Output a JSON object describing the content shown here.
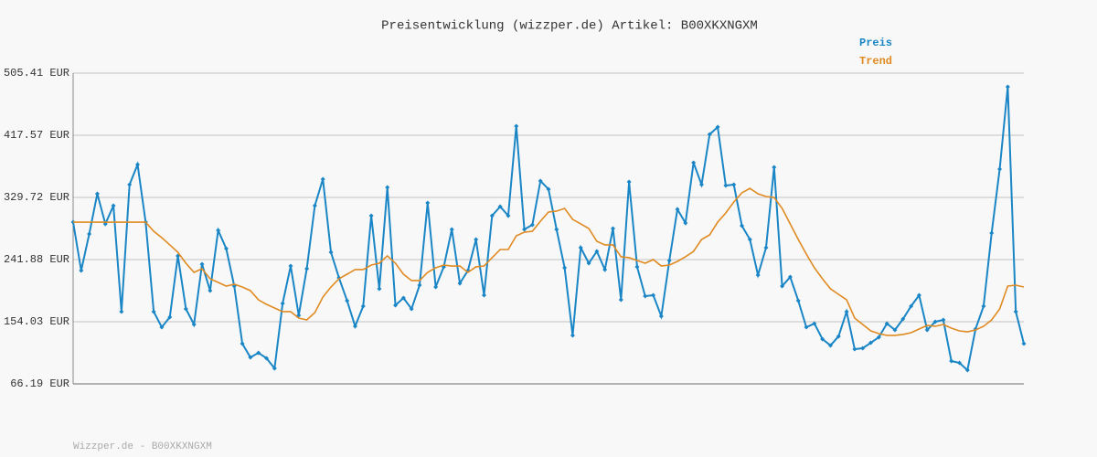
{
  "chart_data": {
    "type": "line",
    "title": "Preisentwicklung (wizzper.de) Artikel: B00XKXNGXM",
    "footer": "Wizzper.de - B00XKXNGXM",
    "legend": "top-right",
    "grid": true,
    "categories": [
      null,
      null,
      null,
      null,
      null,
      null,
      null,
      null,
      null,
      null,
      null,
      null,
      null,
      null,
      null,
      null,
      null,
      null,
      null,
      null,
      null,
      null,
      null,
      null,
      null,
      null,
      null,
      null,
      null,
      null,
      null,
      null,
      null,
      null,
      null,
      null,
      null,
      null,
      null,
      null,
      null,
      null,
      null,
      null,
      null,
      null,
      null,
      null,
      null,
      null,
      null,
      null,
      null,
      null,
      null,
      null,
      null,
      null,
      null,
      null,
      null,
      null,
      null,
      null,
      null,
      null,
      null,
      null,
      null,
      null,
      null,
      null,
      null,
      null,
      null,
      null,
      null,
      null,
      null,
      null,
      null,
      null,
      null,
      null,
      null,
      null,
      null,
      null,
      null,
      null,
      null,
      null,
      null,
      null,
      null,
      null,
      null,
      null,
      null,
      null,
      null,
      null,
      null,
      null,
      null,
      null,
      null,
      null,
      null,
      null,
      null,
      null,
      null,
      null,
      null,
      null,
      null,
      null,
      null
    ],
    "ylim": [
      66.19,
      505.41
    ],
    "yticks": [
      {
        "value": 66.19,
        "label": "66.19 EUR"
      },
      {
        "value": 154.03,
        "label": "154.03 EUR"
      },
      {
        "value": 241.88,
        "label": "241.88 EUR"
      },
      {
        "value": 329.72,
        "label": "329.72 EUR"
      },
      {
        "value": 417.57,
        "label": "417.57 EUR"
      },
      {
        "value": 505.41,
        "label": "505.41 EUR"
      }
    ],
    "series": [
      {
        "name": "Preis",
        "color": "#1a86c6",
        "markers": true,
        "values": [
          294.8,
          226.4,
          278.1,
          334.9,
          292.3,
          318.1,
          168.3,
          347.8,
          376.2,
          294.8,
          168.3,
          146.3,
          160.5,
          247.1,
          172.1,
          150.2,
          235.4,
          198.0,
          283.2,
          257.4,
          204.4,
          123.0,
          103.7,
          110.1,
          102.4,
          88.2,
          179.9,
          232.8,
          163.1,
          229.0,
          318.1,
          355.6,
          252.2,
          216.0,
          183.8,
          147.6,
          176.0,
          303.9,
          200.5,
          343.9,
          177.3,
          187.6,
          172.1,
          205.7,
          322.0,
          203.1,
          231.6,
          284.5,
          208.3,
          226.4,
          270.3,
          191.5,
          303.9,
          316.8,
          303.9,
          430.5,
          284.5,
          291.0,
          353.0,
          341.4,
          284.5,
          230.3,
          134.7,
          258.7,
          236.7,
          253.5,
          227.7,
          285.8,
          185.0,
          351.7,
          231.6,
          190.2,
          191.5,
          161.8,
          240.6,
          312.9,
          293.6,
          378.8,
          347.8,
          418.9,
          429.2,
          346.5,
          347.8,
          289.7,
          270.3,
          219.9,
          258.7,
          372.4,
          204.4,
          217.3,
          183.8,
          146.3,
          151.5,
          129.5,
          120.5,
          133.4,
          168.3,
          115.3,
          116.6,
          124.3,
          132.1,
          151.5,
          142.4,
          157.9,
          176.0,
          191.5,
          142.4,
          154.0,
          156.6,
          98.5,
          95.9,
          85.6,
          143.7,
          176.0,
          279.3,
          369.8,
          486.0,
          168.3,
          123.0
        ]
      },
      {
        "name": "Trend",
        "color": "#e08a22",
        "markers": false,
        "values": [
          294.8,
          294.8,
          294.8,
          294.8,
          294.8,
          294.8,
          294.8,
          294.8,
          294.8,
          294.8,
          281.9,
          272.9,
          262.6,
          252.2,
          236.7,
          223.8,
          229.0,
          214.8,
          209.6,
          204.4,
          207.0,
          203.1,
          198.0,
          185.0,
          178.6,
          173.4,
          168.3,
          168.3,
          159.2,
          156.6,
          167.0,
          188.9,
          203.1,
          214.8,
          221.2,
          227.7,
          227.7,
          234.1,
          236.7,
          247.1,
          236.7,
          221.2,
          212.2,
          212.2,
          223.8,
          230.3,
          234.1,
          232.8,
          232.8,
          223.8,
          231.6,
          232.8,
          244.5,
          256.1,
          256.1,
          275.5,
          280.6,
          281.9,
          296.1,
          309.1,
          310.4,
          314.2,
          298.7,
          292.3,
          285.8,
          267.7,
          262.6,
          262.6,
          245.8,
          244.5,
          240.6,
          236.7,
          241.9,
          232.8,
          234.1,
          239.3,
          245.8,
          253.5,
          270.3,
          276.8,
          294.8,
          307.8,
          323.3,
          336.2,
          342.6,
          334.9,
          331.0,
          329.7,
          314.2,
          292.3,
          270.3,
          249.6,
          230.3,
          214.8,
          200.5,
          192.8,
          185.0,
          159.2,
          150.2,
          141.1,
          137.2,
          134.7,
          134.7,
          136.0,
          138.5,
          143.7,
          148.9,
          147.6,
          150.2,
          145.0,
          141.1,
          139.8,
          142.4,
          147.6,
          156.6,
          172.1,
          204.4,
          205.7,
          203.1
        ]
      }
    ]
  }
}
